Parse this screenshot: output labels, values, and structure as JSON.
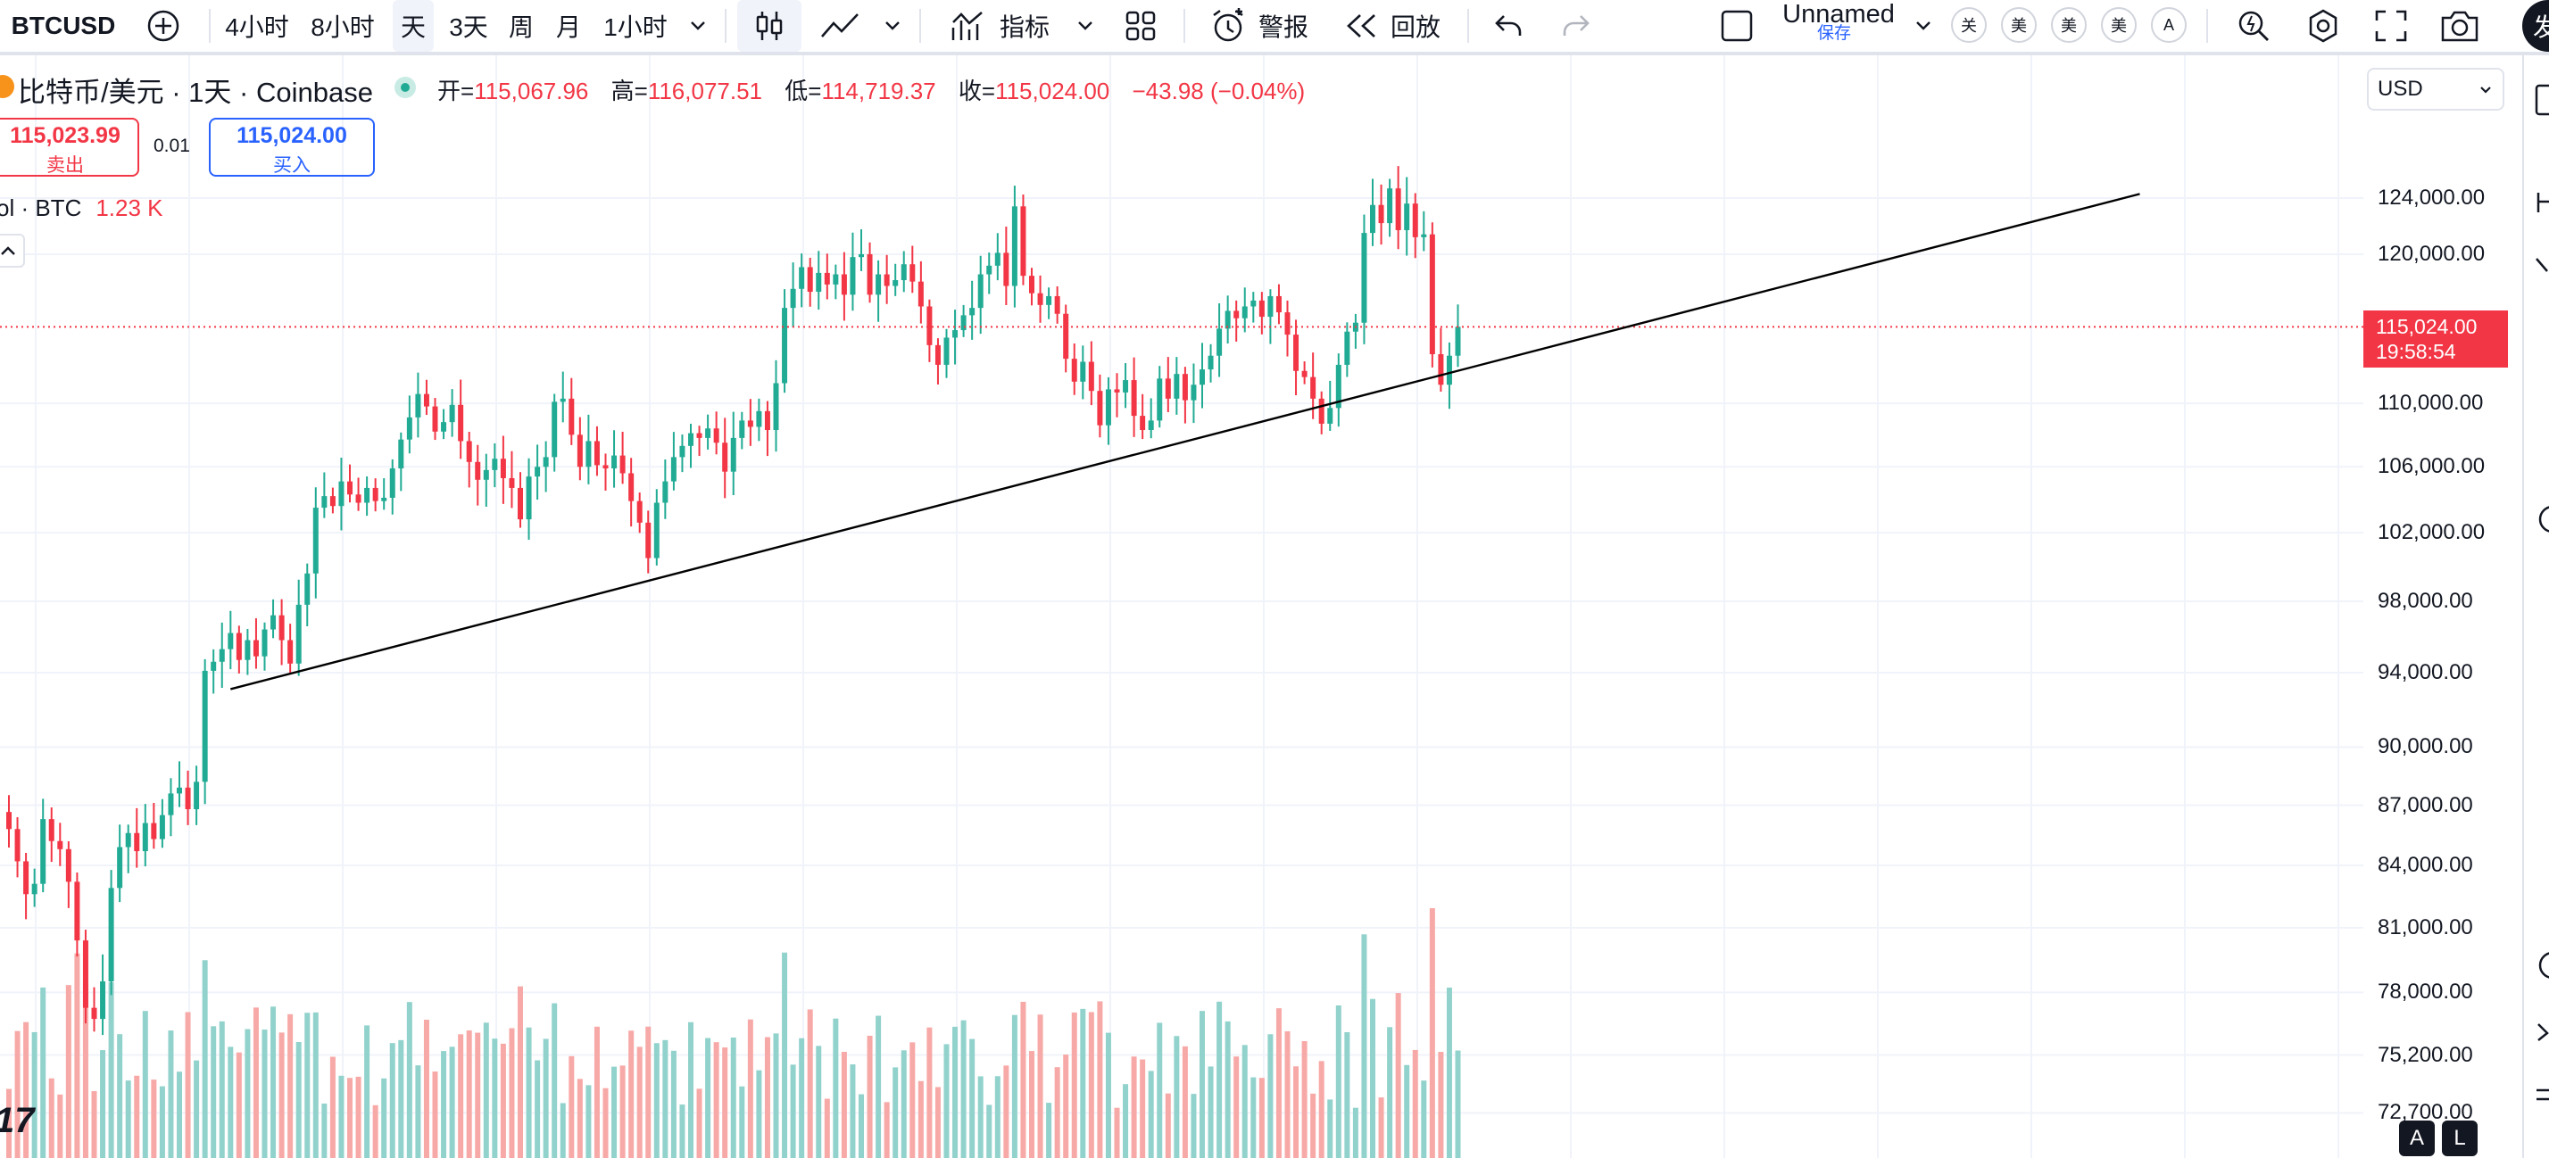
{
  "toolbar": {
    "symbol": "BTCUSD",
    "intervals": [
      "4小时",
      "8小时",
      "天",
      "3天",
      "周",
      "月",
      "1小时"
    ],
    "active_interval": "天",
    "indicators_label": "指标",
    "alert_label": "警报",
    "replay_label": "回放",
    "layout_name": "Unnamed",
    "save_label": "保存",
    "circle_badges": [
      "关",
      "美",
      "美",
      "美",
      "A"
    ],
    "edge_label": "发"
  },
  "legend": {
    "title": "比特币/美元 · 1天 · Coinbase",
    "open_label": "开=",
    "open": "115,067.96",
    "high_label": "高=",
    "high": "116,077.51",
    "low_label": "低=",
    "low": "114,719.37",
    "close_label": "收=",
    "close": "115,024.00",
    "change": "−43.98 (−0.04%)"
  },
  "trade": {
    "sell_price": "115,023.99",
    "sell_label": "卖出",
    "spread": "0.01",
    "buy_price": "115,024.00",
    "buy_label": "买入"
  },
  "volume": {
    "label": "ol · BTC",
    "value": "1.23 K"
  },
  "price_axis": {
    "currency": "USD",
    "last_price": "115,024.00",
    "countdown": "19:58:54",
    "labels": [
      "124,000.00",
      "120,000.00",
      "110,000.00",
      "106,000.00",
      "102,000.00",
      "98,000.00",
      "94,000.00",
      "90,000.00",
      "87,000.00",
      "84,000.00",
      "81,000.00",
      "78,000.00",
      "75,200.00",
      "72,700.00"
    ],
    "corner_buttons": [
      "A",
      "L"
    ]
  },
  "colors": {
    "up": "#22ab94",
    "down": "#f23645",
    "volume_up": "#92d2cc",
    "volume_down": "#f7a9a7",
    "trendline": "#000000",
    "accent": "#2962ff"
  },
  "chart_data": {
    "type": "candlestick",
    "close_series": [
      85800,
      84200,
      82600,
      83100,
      86300,
      85200,
      84800,
      83200,
      80400,
      77300,
      76800,
      78500,
      82900,
      84900,
      85600,
      84700,
      86100,
      85300,
      86500,
      87600,
      87900,
      86800,
      88200,
      94100,
      94600,
      95300,
      96200,
      94700,
      95800,
      94900,
      96400,
      97200,
      95800,
      94500,
      97800,
      99600,
      103500,
      104200,
      103600,
      105100,
      104300,
      103800,
      104700,
      103900,
      104100,
      105900,
      107700,
      109100,
      110600,
      109800,
      108200,
      108800,
      109900,
      107600,
      106300,
      105200,
      105800,
      106500,
      105300,
      104700,
      102800,
      105400,
      106000,
      106600,
      110100,
      110300,
      108000,
      106000,
      107600,
      106100,
      105900,
      106700,
      105600,
      103900,
      102600,
      100500,
      103800,
      105100,
      106600,
      107300,
      108100,
      107800,
      108400,
      107500,
      105700,
      107800,
      108900,
      108500,
      109500,
      108300,
      111300,
      116300,
      117600,
      119100,
      117400,
      118700,
      117900,
      118600,
      117200,
      119800,
      120000,
      117200,
      118600,
      117800,
      118200,
      119300,
      118100,
      116400,
      113800,
      112500,
      114300,
      114800,
      115800,
      116300,
      118600,
      119200,
      120100,
      117800,
      123400,
      118500,
      117300,
      116500,
      117100,
      115900,
      112900,
      111400,
      112700,
      110800,
      108600,
      110900,
      110700,
      111500,
      109200,
      108300,
      108900,
      111600,
      110300,
      111900,
      110200,
      111200,
      112200,
      113100,
      114900,
      116100,
      115600,
      116400,
      116800,
      115700,
      117100,
      116000,
      114500,
      112100,
      111700,
      110300,
      108700,
      109700,
      112500,
      114700,
      115300,
      121500,
      123500,
      122200,
      124700,
      121700,
      123600,
      121200,
      121400,
      113200,
      111200,
      113100,
      115024
    ],
    "trendline": {
      "from_index": 26,
      "from_value": 93100,
      "to_index_extended": 250,
      "to_value": 124300
    },
    "price_labels": [
      "124,000.00",
      "120,000.00",
      "110,000.00",
      "106,000.00",
      "102,000.00",
      "98,000.00",
      "94,000.00",
      "90,000.00",
      "87,000.00",
      "84,000.00",
      "81,000.00",
      "78,000.00",
      "75,200.00",
      "72,700.00"
    ],
    "scale": "log",
    "grid": true
  }
}
